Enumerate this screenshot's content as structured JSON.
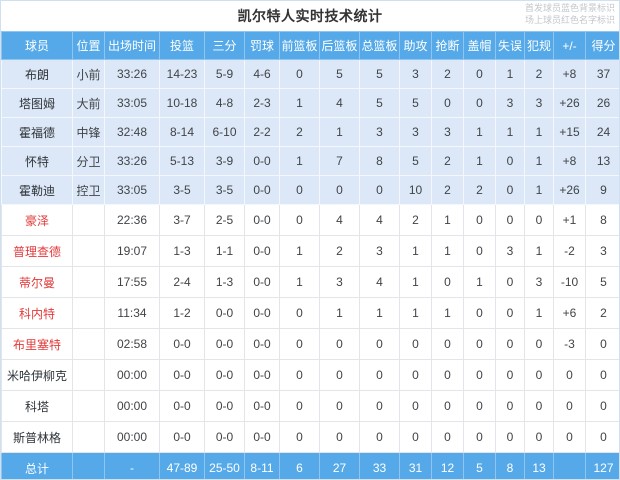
{
  "title": "凯尔特人实时技术统计",
  "legend": {
    "starter_note": "首发球员蓝色背景标识",
    "oncourt_note": "场上球员红色名字标识"
  },
  "colors": {
    "header_bg": "#55a9e8",
    "starter_row_bg": "#dce8f7",
    "oncourt_name_red": "#e23b3b",
    "total_row_bg": "#55a9e8"
  },
  "chart_data": {
    "type": "table",
    "title": "凯尔特人实时技术统计",
    "columns": [
      "球员",
      "位置",
      "出场时间",
      "投篮",
      "三分",
      "罚球",
      "前篮板",
      "后篮板",
      "总篮板",
      "助攻",
      "抢断",
      "盖帽",
      "失误",
      "犯规",
      "+/-",
      "得分"
    ],
    "rows": [
      {
        "cells": [
          "布朗",
          "小前",
          "33:26",
          "14-23",
          "5-9",
          "4-6",
          "0",
          "5",
          "5",
          "3",
          "2",
          "0",
          "1",
          "2",
          "+8",
          "37"
        ],
        "starter": true,
        "oncourt": false
      },
      {
        "cells": [
          "塔图姆",
          "大前",
          "33:05",
          "10-18",
          "4-8",
          "2-3",
          "1",
          "4",
          "5",
          "5",
          "0",
          "0",
          "3",
          "3",
          "+26",
          "26"
        ],
        "starter": true,
        "oncourt": false
      },
      {
        "cells": [
          "霍福德",
          "中锋",
          "32:48",
          "8-14",
          "6-10",
          "2-2",
          "2",
          "1",
          "3",
          "3",
          "3",
          "1",
          "1",
          "1",
          "+15",
          "24"
        ],
        "starter": true,
        "oncourt": false
      },
      {
        "cells": [
          "怀特",
          "分卫",
          "33:26",
          "5-13",
          "3-9",
          "0-0",
          "1",
          "7",
          "8",
          "5",
          "2",
          "1",
          "0",
          "1",
          "+8",
          "13"
        ],
        "starter": true,
        "oncourt": false
      },
      {
        "cells": [
          "霍勒迪",
          "控卫",
          "33:05",
          "3-5",
          "3-5",
          "0-0",
          "0",
          "0",
          "0",
          "10",
          "2",
          "2",
          "0",
          "1",
          "+26",
          "9"
        ],
        "starter": true,
        "oncourt": false
      },
      {
        "cells": [
          "豪泽",
          "",
          "22:36",
          "3-7",
          "2-5",
          "0-0",
          "0",
          "4",
          "4",
          "2",
          "1",
          "0",
          "0",
          "0",
          "+1",
          "8"
        ],
        "starter": false,
        "oncourt": true
      },
      {
        "cells": [
          "普理查德",
          "",
          "19:07",
          "1-3",
          "1-1",
          "0-0",
          "1",
          "2",
          "3",
          "1",
          "1",
          "0",
          "3",
          "1",
          "-2",
          "3"
        ],
        "starter": false,
        "oncourt": true
      },
      {
        "cells": [
          "蒂尔曼",
          "",
          "17:55",
          "2-4",
          "1-3",
          "0-0",
          "1",
          "3",
          "4",
          "1",
          "0",
          "1",
          "0",
          "3",
          "-10",
          "5"
        ],
        "starter": false,
        "oncourt": true
      },
      {
        "cells": [
          "科内特",
          "",
          "11:34",
          "1-2",
          "0-0",
          "0-0",
          "0",
          "1",
          "1",
          "1",
          "1",
          "0",
          "0",
          "1",
          "+6",
          "2"
        ],
        "starter": false,
        "oncourt": true
      },
      {
        "cells": [
          "布里塞特",
          "",
          "02:58",
          "0-0",
          "0-0",
          "0-0",
          "0",
          "0",
          "0",
          "0",
          "0",
          "0",
          "0",
          "0",
          "-3",
          "0"
        ],
        "starter": false,
        "oncourt": true
      },
      {
        "cells": [
          "米哈伊柳克",
          "",
          "00:00",
          "0-0",
          "0-0",
          "0-0",
          "0",
          "0",
          "0",
          "0",
          "0",
          "0",
          "0",
          "0",
          "0",
          "0"
        ],
        "starter": false,
        "oncourt": false
      },
      {
        "cells": [
          "科塔",
          "",
          "00:00",
          "0-0",
          "0-0",
          "0-0",
          "0",
          "0",
          "0",
          "0",
          "0",
          "0",
          "0",
          "0",
          "0",
          "0"
        ],
        "starter": false,
        "oncourt": false
      },
      {
        "cells": [
          "斯普林格",
          "",
          "00:00",
          "0-0",
          "0-0",
          "0-0",
          "0",
          "0",
          "0",
          "0",
          "0",
          "0",
          "0",
          "0",
          "0",
          "0"
        ],
        "starter": false,
        "oncourt": false
      }
    ],
    "total_row": {
      "cells": [
        "总计",
        "",
        "-",
        "47-89",
        "25-50",
        "8-11",
        "6",
        "27",
        "33",
        "31",
        "12",
        "5",
        "8",
        "13",
        "",
        "127"
      ]
    }
  }
}
